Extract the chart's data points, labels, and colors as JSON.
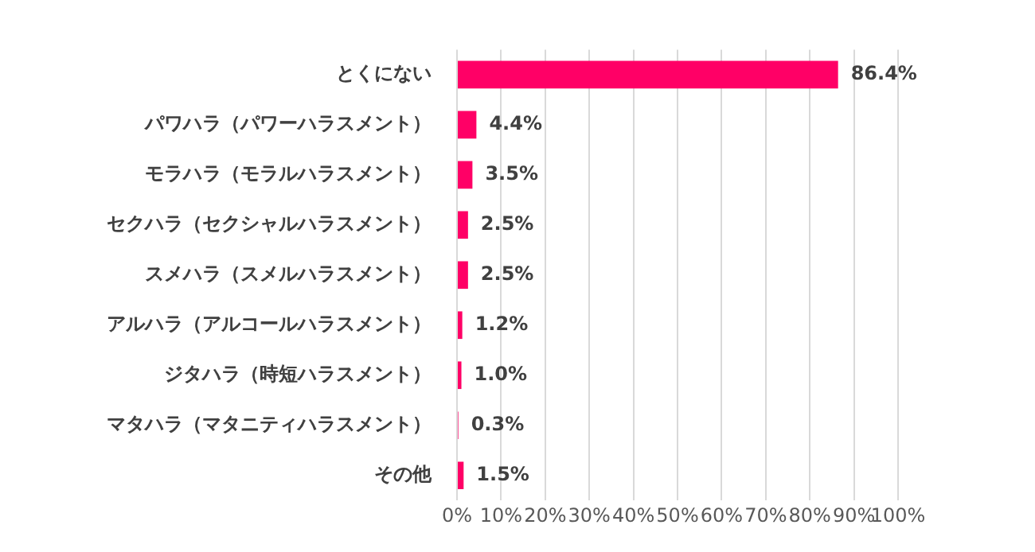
{
  "chart_data": {
    "type": "bar",
    "orientation": "horizontal",
    "categories": [
      "とくにない",
      "パワハラ（パワーハラスメント）",
      "モラハラ（モラルハラスメント）",
      "セクハラ（セクシャルハラスメント）",
      "スメハラ（スメルハラスメント）",
      "アルハラ（アルコールハラスメント）",
      "ジタハラ（時短ハラスメント）",
      "マタハラ（マタニティハラスメント）",
      "その他"
    ],
    "values": [
      86.4,
      4.4,
      3.5,
      2.5,
      2.5,
      1.2,
      1.0,
      0.3,
      1.5
    ],
    "value_labels": [
      "86.4%",
      "4.4%",
      "3.5%",
      "2.5%",
      "2.5%",
      "1.2%",
      "1.0%",
      "0.3%",
      "1.5%"
    ],
    "color": "#ff0066",
    "xlim": [
      0,
      100
    ],
    "xticks": [
      {
        "value": 0,
        "label": "0%"
      },
      {
        "value": 10,
        "label": "10%"
      },
      {
        "value": 20,
        "label": "20%"
      },
      {
        "value": 30,
        "label": "30%"
      },
      {
        "value": 40,
        "label": "40%"
      },
      {
        "value": 50,
        "label": "50%"
      },
      {
        "value": 60,
        "label": "60%"
      },
      {
        "value": 70,
        "label": "70%"
      },
      {
        "value": 80,
        "label": "80%"
      },
      {
        "value": 90,
        "label": "90%"
      },
      {
        "value": 100,
        "label": "100%"
      }
    ],
    "grid": "x",
    "legend": false
  }
}
